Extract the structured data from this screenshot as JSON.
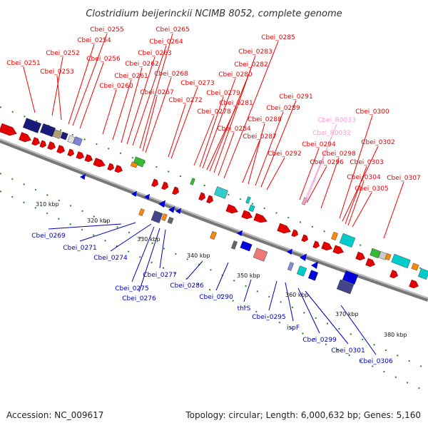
{
  "title": "Clostridium beijerinckii NCIMB 8052, complete genome",
  "footer": {
    "accession": "Accession: NC_009617",
    "summary": "Topology: circular; Length: 6,000,632 bp; Genes: 5,160"
  },
  "colors": {
    "forward_label": "#ee0000",
    "reverse_label": "#0000bb",
    "rna_label": "#ff99cc",
    "backbone": "#999999",
    "tick": "#1f8a1f"
  },
  "kbp_labels": [
    "310 kbp",
    "320 kbp",
    "330 kbp",
    "340 kbp",
    "350 kbp",
    "360 kbp",
    "370 kbp",
    "380 kbp"
  ],
  "forward_genes": [
    "Cbei_0251",
    "Cbei_0252",
    "Cbei_0253",
    "Cbei_0254",
    "Cbei_0255",
    "Cbei_0256",
    "Cbei_0260",
    "Cbei_0261",
    "Cbei_0262",
    "Cbei_0263",
    "Cbei_0264",
    "Cbei_0265",
    "Cbei_0267",
    "Cbei_0268",
    "Cbei_0272",
    "Cbei_0273",
    "Cbei_0278",
    "Cbei_0279",
    "Cbei_0280",
    "Cbei_0281",
    "Cbei_0282",
    "Cbei_0283",
    "Cbei_0284",
    "Cbei_0285",
    "Cbei_0287",
    "Cbei_0288",
    "Cbei_0289",
    "Cbei_0291",
    "Cbei_0292",
    "Cbei_0294",
    "Cbei_0296",
    "Cbei_0298",
    "Cbei_0300",
    "Cbei_0302",
    "Cbei_0303",
    "Cbei_0304",
    "Cbei_0305",
    "Cbei_0307"
  ],
  "rna_genes": [
    "Cbei_R0033",
    "Cbei_R0032"
  ],
  "reverse_genes": [
    "Cbei_0269",
    "Cbei_0271",
    "Cbei_0274",
    "Cbei_0275",
    "Cbei_0276",
    "Cbei_0277",
    "Cbei_0286",
    "Cbei_0290",
    "thrS",
    "Cbei_0295",
    "ispF",
    "Cbei_0299",
    "Cbei_0301",
    "Cbei_0306"
  ]
}
